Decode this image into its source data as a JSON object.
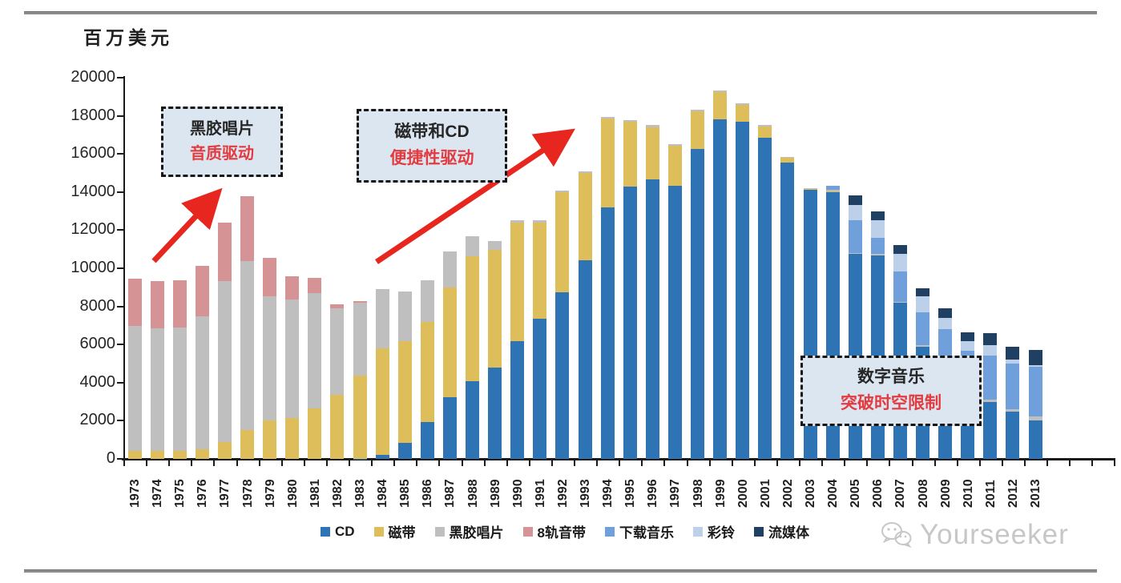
{
  "unit_label": "百万美元",
  "watermark": {
    "brand": "Yourseeker"
  },
  "annotations": {
    "vinyl_era": {
      "line1": "黑胶唱片",
      "line2": "音质驱动"
    },
    "cd_era": {
      "line1": "磁带和CD",
      "line2": "便捷性驱动"
    },
    "digital_era": {
      "line1": "数字音乐",
      "line2": "突破时空限制"
    }
  },
  "colors": {
    "arrow": "#e6261f",
    "annotation_bg": "#dce6f1",
    "annotation_accent": "#e23c40",
    "axis": "#1a1a1a"
  },
  "chart_data": {
    "type": "bar",
    "stacked": true,
    "unit_label": "百万美元",
    "ylim": [
      0,
      20000
    ],
    "y_tick_step": 2000,
    "grid": false,
    "legend_position": "bottom",
    "categories": [
      "1973",
      "1974",
      "1975",
      "1976",
      "1977",
      "1978",
      "1979",
      "1980",
      "1981",
      "1982",
      "1983",
      "1984",
      "1985",
      "1986",
      "1987",
      "1988",
      "1989",
      "1990",
      "1991",
      "1992",
      "1993",
      "1994",
      "1995",
      "1996",
      "1997",
      "1998",
      "1999",
      "2000",
      "2001",
      "2002",
      "2003",
      "2004",
      "2005",
      "2006",
      "2007",
      "2008",
      "2009",
      "2010",
      "2011",
      "2012",
      "2013"
    ],
    "series": [
      {
        "name": "CD",
        "color": "#2e74b5",
        "values": [
          0,
          0,
          0,
          0,
          0,
          0,
          0,
          0,
          0,
          0,
          20,
          230,
          850,
          1940,
          3230,
          4060,
          4780,
          6195,
          7345,
          8735,
          10400,
          13210,
          14265,
          14680,
          14320,
          16280,
          17835,
          17695,
          16860,
          15540,
          14100,
          13990,
          10750,
          10680,
          8180,
          5890,
          4600,
          3520,
          2990,
          2485,
          2020
        ]
      },
      {
        "name": "磁带",
        "color": "#ddbe5b",
        "values": [
          400,
          400,
          400,
          500,
          900,
          1500,
          2000,
          2150,
          2650,
          3365,
          4340,
          5580,
          5320,
          5260,
          5755,
          6550,
          6180,
          6195,
          5070,
          5265,
          4615,
          4640,
          3410,
          2730,
          2095,
          1950,
          1395,
          895,
          585,
          255,
          60,
          60,
          0,
          0,
          0,
          0,
          0,
          0,
          0,
          0,
          0
        ]
      },
      {
        "name": "黑胶唱片",
        "color": "#bfbfbf",
        "values": [
          6560,
          6460,
          6490,
          6985,
          8420,
          8860,
          6530,
          6200,
          6045,
          4515,
          3840,
          3090,
          2595,
          2180,
          1905,
          1070,
          485,
          125,
          100,
          85,
          70,
          80,
          90,
          105,
          100,
          90,
          90,
          75,
          70,
          55,
          60,
          60,
          60,
          60,
          60,
          70,
          70,
          90,
          120,
          140,
          210
        ]
      },
      {
        "name": "8轨音带",
        "color": "#d59396",
        "values": [
          2500,
          2460,
          2470,
          2640,
          3095,
          3405,
          2010,
          1250,
          805,
          210,
          60,
          0,
          0,
          0,
          0,
          0,
          0,
          0,
          0,
          0,
          0,
          0,
          0,
          0,
          0,
          0,
          0,
          0,
          0,
          0,
          0,
          0,
          0,
          0,
          0,
          0,
          0,
          0,
          0,
          0,
          0
        ]
      },
      {
        "name": "下载音乐",
        "color": "#6fa0dc",
        "values": [
          0,
          0,
          0,
          0,
          0,
          0,
          0,
          0,
          0,
          0,
          0,
          0,
          0,
          0,
          0,
          0,
          0,
          0,
          0,
          0,
          0,
          0,
          0,
          0,
          0,
          0,
          0,
          0,
          0,
          0,
          0,
          210,
          1710,
          870,
          1610,
          1735,
          2120,
          2070,
          2300,
          2360,
          2620
        ]
      },
      {
        "name": "彩铃",
        "color": "#bdd0ea",
        "values": [
          0,
          0,
          0,
          0,
          0,
          0,
          0,
          0,
          0,
          0,
          0,
          0,
          0,
          0,
          0,
          0,
          0,
          0,
          0,
          0,
          0,
          0,
          0,
          0,
          0,
          0,
          0,
          0,
          0,
          0,
          0,
          0,
          805,
          905,
          900,
          835,
          625,
          485,
          550,
          210,
          60
        ]
      },
      {
        "name": "流媒体",
        "color": "#1f3f63",
        "values": [
          0,
          0,
          0,
          0,
          0,
          0,
          0,
          0,
          0,
          0,
          0,
          0,
          0,
          0,
          0,
          0,
          0,
          0,
          0,
          0,
          0,
          0,
          0,
          0,
          0,
          0,
          0,
          0,
          0,
          0,
          0,
          0,
          485,
          460,
          485,
          415,
          485,
          490,
          625,
          695,
          790
        ]
      }
    ]
  }
}
